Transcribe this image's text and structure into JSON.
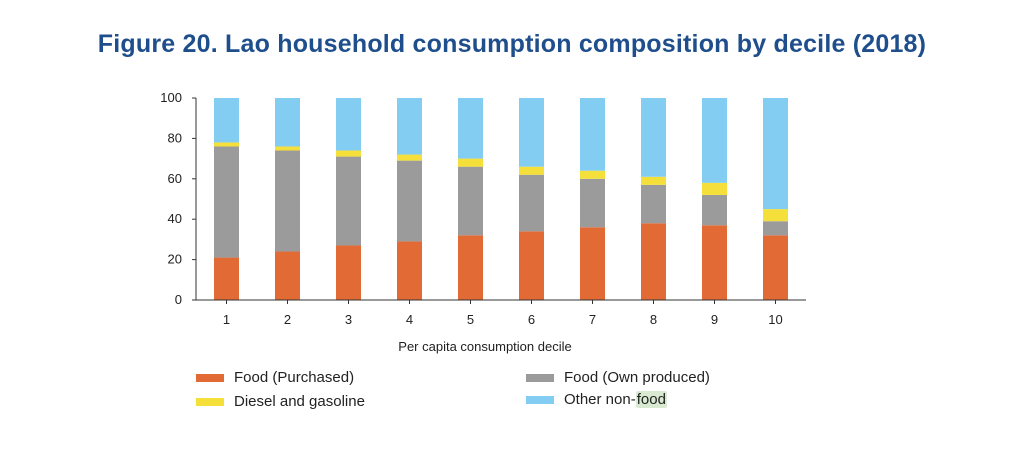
{
  "chart_data": {
    "type": "bar",
    "stacked": true,
    "title": "Figure 20. Lao household consumption composition by decile (2018)",
    "xlabel": "Per capita consumption decile",
    "ylabel": "",
    "ylim": [
      0,
      100
    ],
    "yticks": [
      0,
      20,
      40,
      60,
      80,
      100
    ],
    "ytick_labels": [
      "0",
      "20",
      "40",
      "60",
      "80",
      "100"
    ],
    "categories": [
      "1",
      "2",
      "3",
      "4",
      "5",
      "6",
      "7",
      "8",
      "9",
      "10"
    ],
    "series": [
      {
        "name": "Food (Purchased)",
        "color": "#e26b35",
        "values": [
          21,
          24,
          27,
          29,
          32,
          34,
          36,
          38,
          37,
          32
        ]
      },
      {
        "name": "Food (Own produced)",
        "color": "#9b9b9b",
        "values": [
          55,
          50,
          44,
          40,
          34,
          28,
          24,
          19,
          15,
          7
        ]
      },
      {
        "name": "Diesel and gasoline",
        "color": "#f5e03b",
        "values": [
          2,
          2,
          3,
          3,
          4,
          4,
          4,
          4,
          6,
          6
        ]
      },
      {
        "name": "Other non-food",
        "color": "#84cdf2",
        "values": [
          22,
          24,
          26,
          28,
          30,
          34,
          36,
          39,
          42,
          55
        ]
      }
    ],
    "legend_position": "bottom"
  },
  "legend": {
    "items": [
      {
        "label": "Food (Purchased)",
        "color": "#e26b35"
      },
      {
        "label": "Food (Own produced)",
        "color": "#9b9b9b"
      },
      {
        "label": "Diesel and gasoline",
        "color": "#f5e03b"
      },
      {
        "label_main": "Other non-",
        "label_hl": "food",
        "color": "#84cdf2"
      }
    ]
  }
}
